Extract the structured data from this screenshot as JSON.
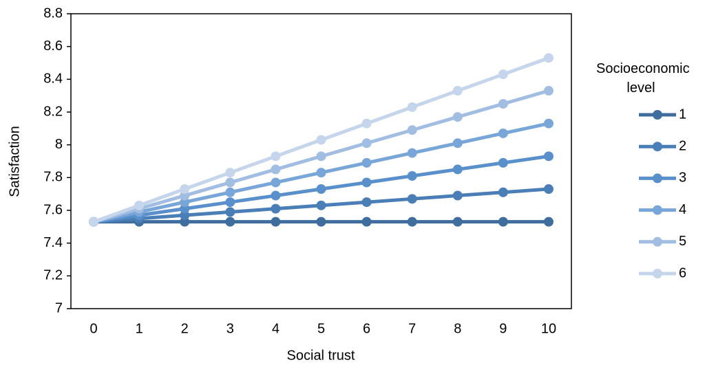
{
  "chart_data": {
    "type": "line",
    "x_label": "Social trust",
    "y_label": "Satisfaction",
    "legend_title": "Socioeconomic level",
    "categories": [
      "0",
      "1",
      "2",
      "3",
      "4",
      "5",
      "6",
      "7",
      "8",
      "9",
      "10"
    ],
    "ylim": [
      7,
      8.8
    ],
    "yticks": [
      7,
      7.2,
      7.4,
      7.6,
      7.8,
      8,
      8.2,
      8.4,
      8.6,
      8.8
    ],
    "legend": "right",
    "series": [
      {
        "name": "1",
        "color": "#3f6e9e",
        "values": [
          7.53,
          7.53,
          7.53,
          7.53,
          7.53,
          7.53,
          7.53,
          7.53,
          7.53,
          7.53,
          7.53
        ]
      },
      {
        "name": "2",
        "color": "#4a7eb7",
        "values": [
          7.53,
          7.55,
          7.57,
          7.59,
          7.61,
          7.63,
          7.65,
          7.67,
          7.69,
          7.71,
          7.73
        ]
      },
      {
        "name": "3",
        "color": "#5990cc",
        "values": [
          7.53,
          7.57,
          7.61,
          7.65,
          7.69,
          7.73,
          7.77,
          7.81,
          7.85,
          7.89,
          7.93
        ]
      },
      {
        "name": "4",
        "color": "#79a6d8",
        "values": [
          7.53,
          7.59,
          7.65,
          7.71,
          7.77,
          7.83,
          7.89,
          7.95,
          8.01,
          8.07,
          8.13
        ]
      },
      {
        "name": "5",
        "color": "#a2bde2",
        "values": [
          7.53,
          7.61,
          7.69,
          7.77,
          7.85,
          7.93,
          8.01,
          8.09,
          8.17,
          8.25,
          8.33
        ]
      },
      {
        "name": "6",
        "color": "#c5d5eb",
        "values": [
          7.53,
          7.63,
          7.73,
          7.83,
          7.93,
          8.03,
          8.13,
          8.23,
          8.33,
          8.43,
          8.53
        ]
      }
    ]
  }
}
